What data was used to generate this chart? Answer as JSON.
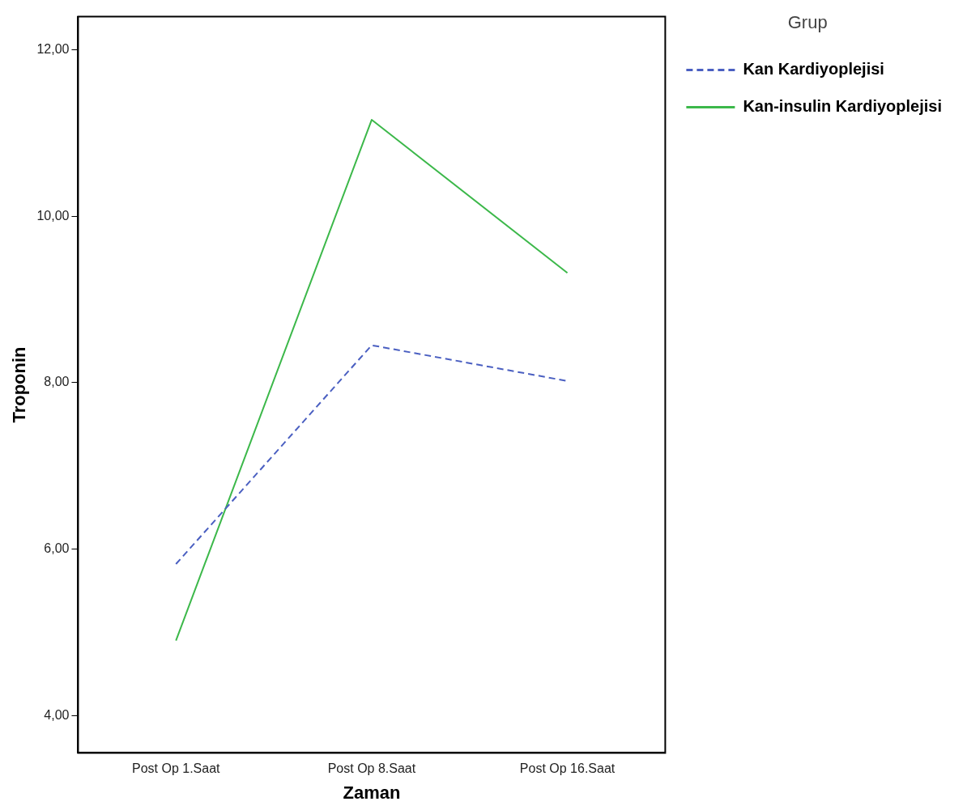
{
  "chart_data": {
    "type": "line",
    "xlabel": "Zaman",
    "ylabel": "Troponin",
    "legend_title": "Grup",
    "legend": "top right",
    "grid": false,
    "marker": "none",
    "categories": [
      "Post Op 1.Saat",
      "Post Op 8.Saat",
      "Post Op 16.Saat"
    ],
    "ylim": [
      3.55,
      12.4
    ],
    "yticks": [
      {
        "value": 4,
        "label": "4,00"
      },
      {
        "value": 6,
        "label": "6,00"
      },
      {
        "value": 8,
        "label": "8,00"
      },
      {
        "value": 10,
        "label": "10,00"
      },
      {
        "value": 12,
        "label": "12,00"
      }
    ],
    "series": [
      {
        "name": "Kan Kardiyoplejisi",
        "color": "#4a5fc1",
        "line_style": "dashed",
        "values": [
          5.82,
          8.45,
          8.02
        ]
      },
      {
        "name": "Kan-insulin Kardiyoplejisi",
        "color": "#3cb84a",
        "line_style": "solid",
        "values": [
          4.9,
          11.16,
          9.32
        ]
      }
    ]
  }
}
